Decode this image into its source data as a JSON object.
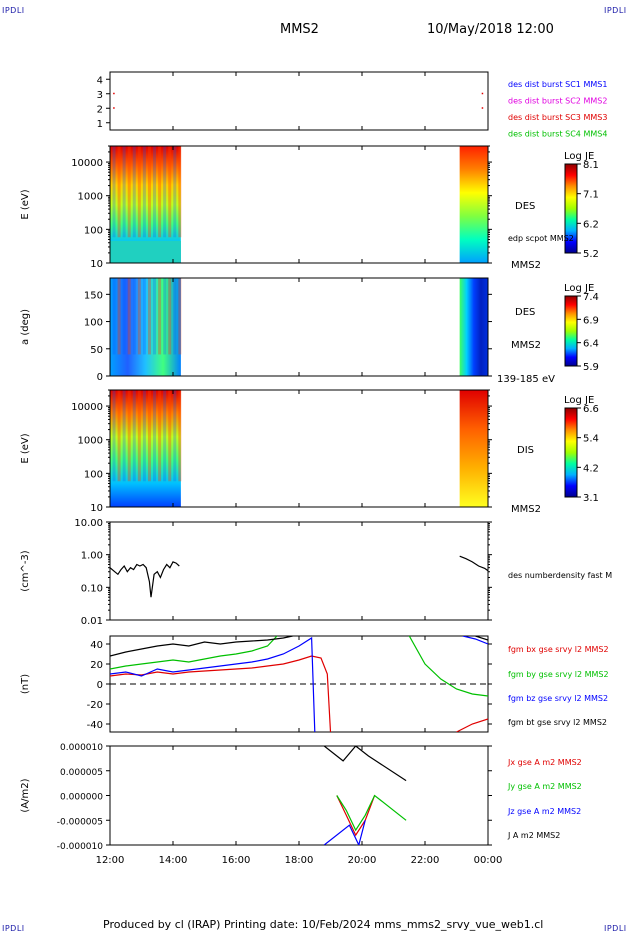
{
  "corner_labels": {
    "tl": "IPDLI",
    "tr": "IPDLI",
    "bl": "IPDLI",
    "br": "IPDLI"
  },
  "header": {
    "title": "MMS2",
    "date": "10/May/2018 12:00"
  },
  "footer": {
    "text": "Produced by cl (IRAP)   Printing date: 10/Feb/2024   mms_mms2_srvy_vue_web1.cl"
  },
  "time_axis": {
    "ticks": [
      "12:00",
      "14:00",
      "16:00",
      "18:00",
      "20:00",
      "22:00",
      "00:00"
    ],
    "range_hours": [
      12,
      24
    ]
  },
  "colors": {
    "blue": "#0000ff",
    "magenta": "#e000e0",
    "red": "#e00000",
    "green": "#00c000",
    "black": "#000000"
  },
  "chart_data": [
    {
      "type": "scatter",
      "panel": "availability",
      "y_ticks": [
        "4",
        "3",
        "2",
        "1"
      ],
      "ylim": [
        0.5,
        4.5
      ],
      "legend": [
        {
          "label": "des dist burst SC1 MMS1",
          "color": "blue"
        },
        {
          "label": "des dist burst SC2 MMS2",
          "color": "magenta"
        },
        {
          "label": "des dist burst SC3 MMS3",
          "color": "red"
        },
        {
          "label": "des dist burst SC4 MMS4",
          "color": "green"
        }
      ],
      "points": [
        {
          "x": 12.1,
          "y": 3
        },
        {
          "x": 12.1,
          "y": 2
        },
        {
          "x": 23.8,
          "y": 3
        },
        {
          "x": 23.8,
          "y": 2
        }
      ]
    },
    {
      "type": "heatmap",
      "panel": "des-energy",
      "ylabel": "E (eV)",
      "scale": "log",
      "ylim": [
        10,
        30000
      ],
      "y_ticks": [
        "10000",
        "1000",
        "100",
        "10"
      ],
      "side_labels": [
        "DES",
        "edp scpot MMS2",
        "MMS2"
      ],
      "colorbar": {
        "title": "Log JE",
        "ticks": [
          "8.1",
          "7.1",
          "6.2",
          "5.2"
        ]
      },
      "data_intervals": [
        [
          12.0,
          14.25
        ],
        [
          23.1,
          24.0
        ]
      ]
    },
    {
      "type": "heatmap",
      "panel": "des-pitch",
      "ylabel": "a (deg)",
      "ylim": [
        0,
        180
      ],
      "y_ticks": [
        "150",
        "100",
        "50",
        "0"
      ],
      "side_labels": [
        "DES",
        "MMS2",
        "139-185 eV"
      ],
      "colorbar": {
        "title": "Log JE",
        "ticks": [
          "7.4",
          "6.9",
          "6.4",
          "5.9"
        ]
      },
      "data_intervals": [
        [
          12.0,
          14.25
        ],
        [
          23.1,
          24.0
        ]
      ]
    },
    {
      "type": "heatmap",
      "panel": "dis-energy",
      "ylabel": "E (eV)",
      "scale": "log",
      "ylim": [
        10,
        30000
      ],
      "y_ticks": [
        "10000",
        "1000",
        "100",
        "10"
      ],
      "side_labels": [
        "DIS",
        "MMS2"
      ],
      "colorbar": {
        "title": "Log JE",
        "ticks": [
          "6.6",
          "5.4",
          "4.2",
          "3.1"
        ]
      },
      "data_intervals": [
        [
          12.0,
          14.25
        ],
        [
          23.1,
          24.0
        ]
      ]
    },
    {
      "type": "line",
      "panel": "density",
      "ylabel": "(cm^-3)",
      "scale": "log",
      "ylim": [
        0.01,
        10
      ],
      "y_ticks": [
        "10.00",
        "1.00",
        "0.10",
        "0.01"
      ],
      "series": [
        {
          "name": "des numberdensity fast M",
          "color": "black",
          "x": [
            12.0,
            12.15,
            12.25,
            12.35,
            12.45,
            12.55,
            12.65,
            12.75,
            12.85,
            12.95,
            13.05,
            13.15,
            13.25,
            13.3,
            13.4,
            13.5,
            13.6,
            13.7,
            13.8,
            13.9,
            14.0,
            14.1,
            14.2,
            23.1,
            23.3,
            23.5,
            23.7,
            23.9,
            24.0
          ],
          "y": [
            0.4,
            0.3,
            0.25,
            0.35,
            0.45,
            0.3,
            0.4,
            0.35,
            0.5,
            0.45,
            0.5,
            0.4,
            0.15,
            0.05,
            0.25,
            0.3,
            0.2,
            0.35,
            0.5,
            0.4,
            0.6,
            0.55,
            0.45,
            0.9,
            0.75,
            0.6,
            0.45,
            0.38,
            0.32
          ]
        }
      ]
    },
    {
      "type": "line",
      "panel": "b-field",
      "ylabel": "(nT)",
      "ylim": [
        -48,
        48
      ],
      "y_ticks": [
        "40",
        "20",
        "0",
        "-20",
        "-40"
      ],
      "series": [
        {
          "name": "fgm bx gse srvy l2 MMS2",
          "color": "red",
          "x": [
            12.0,
            12.5,
            13.0,
            13.5,
            14.0,
            14.5,
            15.0,
            15.5,
            16.0,
            16.5,
            17.0,
            17.5,
            18.0,
            18.4,
            18.7,
            18.9,
            19.0,
            23.0,
            23.5,
            24.0
          ],
          "y": [
            8,
            10,
            9,
            12,
            10,
            12,
            13,
            14,
            15,
            16,
            18,
            20,
            24,
            28,
            26,
            10,
            -48,
            -48,
            -40,
            -35
          ]
        },
        {
          "name": "fgm by gse srvy l2 MMS2",
          "color": "green",
          "x": [
            12.0,
            12.5,
            13.0,
            13.5,
            14.0,
            14.5,
            15.0,
            15.5,
            16.0,
            16.5,
            17.0,
            17.3,
            21.5,
            22.0,
            22.5,
            23.0,
            23.5,
            24.0
          ],
          "y": [
            15,
            18,
            20,
            22,
            24,
            22,
            25,
            28,
            30,
            33,
            38,
            48,
            48,
            20,
            5,
            -5,
            -10,
            -12
          ]
        },
        {
          "name": "fgm bz gse srvy l2 MMS2",
          "color": "blue",
          "x": [
            12.0,
            12.5,
            13.0,
            13.5,
            14.0,
            14.5,
            15.0,
            15.5,
            16.0,
            16.5,
            17.0,
            17.5,
            18.0,
            18.4,
            18.5,
            23.2,
            23.6,
            24.0
          ],
          "y": [
            10,
            12,
            8,
            15,
            12,
            14,
            16,
            18,
            20,
            22,
            25,
            30,
            38,
            46,
            -48,
            48,
            45,
            40
          ]
        },
        {
          "name": "fgm bt gse srvy l2 MMS2",
          "color": "black",
          "x": [
            12.0,
            12.5,
            13.0,
            13.5,
            14.0,
            14.5,
            15.0,
            15.5,
            16.0,
            16.5,
            17.0,
            17.5,
            17.8,
            23.6,
            24.0
          ],
          "y": [
            28,
            32,
            35,
            38,
            40,
            38,
            42,
            40,
            42,
            43,
            44,
            46,
            48,
            48,
            44
          ]
        }
      ]
    },
    {
      "type": "line",
      "panel": "current",
      "ylabel": "(A/m2)",
      "ylim": [
        -1e-05,
        1e-05
      ],
      "y_ticks": [
        "0.000010",
        "0.000005",
        "0.000000",
        "-0.000005",
        "-0.000010"
      ],
      "series": [
        {
          "name": "Jx gse A m2 MMS2",
          "color": "red",
          "x": [
            19.2,
            19.5,
            19.8,
            20.1,
            20.4
          ],
          "y": [
            0.0,
            -4e-06,
            -8e-06,
            -5e-06,
            0.0
          ]
        },
        {
          "name": "Jy gse A m2 MMS2",
          "color": "green",
          "x": [
            19.2,
            19.5,
            19.8,
            20.1,
            20.4,
            21.4
          ],
          "y": [
            0.0,
            -3e-06,
            -7e-06,
            -4e-06,
            0.0,
            -5e-06
          ]
        },
        {
          "name": "Jz gse A m2 MMS2",
          "color": "blue",
          "x": [
            18.8,
            19.6,
            19.9,
            20.1
          ],
          "y": [
            -1e-05,
            -6e-06,
            -1e-05,
            -5e-06
          ]
        },
        {
          "name": "J A m2 MMS2",
          "color": "black",
          "x": [
            18.8,
            19.4,
            19.8,
            20.2,
            21.4
          ],
          "y": [
            1e-05,
            7e-06,
            1e-05,
            8e-06,
            3e-06
          ]
        }
      ]
    }
  ]
}
